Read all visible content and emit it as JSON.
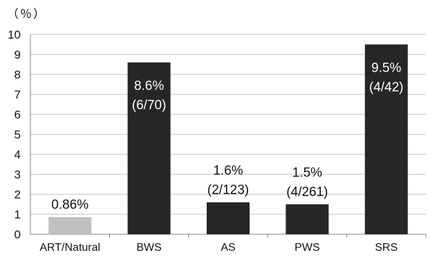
{
  "chart_data": {
    "type": "bar",
    "unit_label": "（％）",
    "categories": [
      "ART/Natural",
      "BWS",
      "AS",
      "PWS",
      "SRS"
    ],
    "values": [
      0.86,
      8.6,
      1.6,
      1.5,
      9.5
    ],
    "bar_colors": [
      "#c0c0c0",
      "#262626",
      "#262626",
      "#262626",
      "#262626"
    ],
    "data_labels": [
      {
        "pct": "0.86%",
        "count": "",
        "position": "outside"
      },
      {
        "pct": "8.6%",
        "count": "(6/70)",
        "position": "inside"
      },
      {
        "pct": "1.6%",
        "count": "(2/123)",
        "position": "outside"
      },
      {
        "pct": "1.5%",
        "count": "(4/261)",
        "position": "outside"
      },
      {
        "pct": "9.5%",
        "count": "(4/42)",
        "position": "inside"
      }
    ],
    "ylim": [
      0,
      10
    ],
    "yticks": [
      0,
      1,
      2,
      3,
      4,
      5,
      6,
      7,
      8,
      9,
      10
    ],
    "grid": true,
    "grid_color": "#bfbfbf",
    "axis_color": "#808080"
  }
}
